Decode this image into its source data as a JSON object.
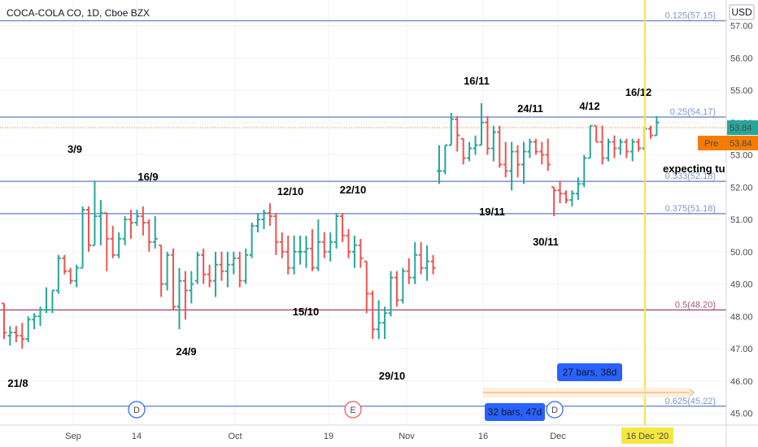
{
  "header": {
    "symbol": "COCA-COLA CO, 1D, Cboe BZX",
    "currency": "USD"
  },
  "chart_data": {
    "type": "ohlc",
    "title": "COCA-COLA CO, 1D, Cboe BZX",
    "ylabel": "USD",
    "ylim": [
      44.8,
      57.6
    ],
    "grid": true,
    "y_ticks": [
      "57.00",
      "56.00",
      "55.00",
      "54.00",
      "53.00",
      "52.00",
      "51.00",
      "50.00",
      "49.00",
      "48.00",
      "47.00",
      "46.00",
      "45.00"
    ],
    "x_ticks": [
      "Sep",
      "14",
      "Oct",
      "19",
      "Nov",
      "16",
      "Dec"
    ],
    "ohlc": [
      [
        48.4,
        48.4,
        47.3,
        47.5
      ],
      [
        47.4,
        47.7,
        47.1,
        47.5
      ],
      [
        47.5,
        47.7,
        47.2,
        47.4
      ],
      [
        47.4,
        47.8,
        47.0,
        47.3
      ],
      [
        47.3,
        48.0,
        47.2,
        47.9
      ],
      [
        47.9,
        48.1,
        47.6,
        48.0
      ],
      [
        48.0,
        48.3,
        47.7,
        48.2
      ],
      [
        48.2,
        48.9,
        48.1,
        48.2
      ],
      [
        48.2,
        48.8,
        48.1,
        48.8
      ],
      [
        48.8,
        49.9,
        48.7,
        49.8
      ],
      [
        49.8,
        49.9,
        49.3,
        49.4
      ],
      [
        49.4,
        49.5,
        49.0,
        49.1
      ],
      [
        49.1,
        49.6,
        48.9,
        49.5
      ],
      [
        49.5,
        51.4,
        49.5,
        51.3
      ],
      [
        51.3,
        51.4,
        50.0,
        50.2
      ],
      [
        50.2,
        52.2,
        50.2,
        51.1
      ],
      [
        51.1,
        51.6,
        50.2,
        51.2
      ],
      [
        51.2,
        51.2,
        49.4,
        50.4
      ],
      [
        50.4,
        50.8,
        49.8,
        49.9
      ],
      [
        49.9,
        50.6,
        49.8,
        50.4
      ],
      [
        50.4,
        51.1,
        50.2,
        51.0
      ],
      [
        51.0,
        51.3,
        50.4,
        50.9
      ],
      [
        50.9,
        51.3,
        50.8,
        51.1
      ],
      [
        51.1,
        51.4,
        50.5,
        50.9
      ],
      [
        50.9,
        51.0,
        50.0,
        50.3
      ],
      [
        50.3,
        51.1,
        50.1,
        50.4
      ],
      [
        50.2,
        50.2,
        48.6,
        49.0
      ],
      [
        49.0,
        50.0,
        48.8,
        49.9
      ],
      [
        49.9,
        50.1,
        48.2,
        48.3
      ],
      [
        48.3,
        49.5,
        47.6,
        49.1
      ],
      [
        49.1,
        49.4,
        47.9,
        48.8
      ],
      [
        48.8,
        49.4,
        48.4,
        49.0
      ],
      [
        49.1,
        50.0,
        49.0,
        49.9
      ],
      [
        49.9,
        50.1,
        49.0,
        49.3
      ],
      [
        49.3,
        49.6,
        48.9,
        49.1
      ],
      [
        49.1,
        50.0,
        48.6,
        49.6
      ],
      [
        49.6,
        50.0,
        49.1,
        49.4
      ],
      [
        49.4,
        50.0,
        48.9,
        49.6
      ],
      [
        49.6,
        50.0,
        49.3,
        49.8
      ],
      [
        49.8,
        50.0,
        48.9,
        49.1
      ],
      [
        49.1,
        50.1,
        49.0,
        49.9
      ],
      [
        49.9,
        50.9,
        49.8,
        50.8
      ],
      [
        50.8,
        51.2,
        50.6,
        51.0
      ],
      [
        51.0,
        51.3,
        50.7,
        51.2
      ],
      [
        51.2,
        51.5,
        50.8,
        51.1
      ],
      [
        51.1,
        51.2,
        49.9,
        50.3
      ],
      [
        50.3,
        50.6,
        49.8,
        50.0
      ],
      [
        50.0,
        50.5,
        49.3,
        49.5
      ],
      [
        49.5,
        50.5,
        49.3,
        50.0
      ],
      [
        50.0,
        50.5,
        49.6,
        50.0
      ],
      [
        50.0,
        50.5,
        49.5,
        50.1
      ],
      [
        50.1,
        50.7,
        49.4,
        49.5
      ],
      [
        49.5,
        51.0,
        49.4,
        50.3
      ],
      [
        50.3,
        50.6,
        49.8,
        50.0
      ],
      [
        50.0,
        50.6,
        49.7,
        50.3
      ],
      [
        50.3,
        51.2,
        50.1,
        51.1
      ],
      [
        51.1,
        51.2,
        50.3,
        50.5
      ],
      [
        50.5,
        50.7,
        49.8,
        50.0
      ],
      [
        50.0,
        50.5,
        49.5,
        50.2
      ],
      [
        50.2,
        50.4,
        49.5,
        49.8
      ],
      [
        49.7,
        49.7,
        48.1,
        48.7
      ],
      [
        48.7,
        48.8,
        47.3,
        47.6
      ],
      [
        47.6,
        48.5,
        47.3,
        47.8
      ],
      [
        47.8,
        48.3,
        47.3,
        48.1
      ],
      [
        48.1,
        49.4,
        48.0,
        49.2
      ],
      [
        49.2,
        49.4,
        48.3,
        48.5
      ],
      [
        48.5,
        49.5,
        48.4,
        49.4
      ],
      [
        49.4,
        49.8,
        49.0,
        49.2
      ],
      [
        49.2,
        50.3,
        49.0,
        49.9
      ],
      [
        49.9,
        50.3,
        49.3,
        49.5
      ],
      [
        49.5,
        50.2,
        49.1,
        49.7
      ],
      [
        49.7,
        49.9,
        49.3,
        49.5
      ],
      [
        52.5,
        53.3,
        52.1,
        52.5
      ],
      [
        52.5,
        53.3,
        52.4,
        53.3
      ],
      [
        53.3,
        54.3,
        53.3,
        54.1
      ],
      [
        54.1,
        54.2,
        53.1,
        53.6
      ],
      [
        53.5,
        53.5,
        52.7,
        52.9
      ],
      [
        52.9,
        53.4,
        52.8,
        53.2
      ],
      [
        53.2,
        53.6,
        53.0,
        53.3
      ],
      [
        53.3,
        54.6,
        53.3,
        54.0
      ],
      [
        54.0,
        54.2,
        53.0,
        53.2
      ],
      [
        53.2,
        53.9,
        52.8,
        53.7
      ],
      [
        53.7,
        53.9,
        52.6,
        52.7
      ],
      [
        52.7,
        53.4,
        52.3,
        52.5
      ],
      [
        52.5,
        53.4,
        51.9,
        53.1
      ],
      [
        53.1,
        53.3,
        52.3,
        52.7
      ],
      [
        52.7,
        53.4,
        52.1,
        53.1
      ],
      [
        53.1,
        53.5,
        52.9,
        53.4
      ],
      [
        53.4,
        53.5,
        53.0,
        53.1
      ],
      [
        53.1,
        53.4,
        52.7,
        53.0
      ],
      [
        53.0,
        53.5,
        52.5,
        52.7
      ],
      [
        52.0,
        52.0,
        51.1,
        51.9
      ],
      [
        51.9,
        52.2,
        51.5,
        51.8
      ],
      [
        51.8,
        51.9,
        51.5,
        51.6
      ],
      [
        51.6,
        51.9,
        51.4,
        51.8
      ],
      [
        51.8,
        52.3,
        51.6,
        52.1
      ],
      [
        52.1,
        53.0,
        52.0,
        52.9
      ],
      [
        52.9,
        53.9,
        52.9,
        53.9
      ],
      [
        53.9,
        53.9,
        53.4,
        53.4
      ],
      [
        53.4,
        53.9,
        52.7,
        52.9
      ],
      [
        52.9,
        53.5,
        52.8,
        53.4
      ],
      [
        53.4,
        53.6,
        52.9,
        53.2
      ],
      [
        53.2,
        53.5,
        53.0,
        53.4
      ],
      [
        53.4,
        53.5,
        52.9,
        53.1
      ],
      [
        53.1,
        53.5,
        52.8,
        53.4
      ],
      [
        53.4,
        53.5,
        53.1,
        53.2
      ],
      [
        53.2,
        53.9,
        53.1,
        53.8
      ],
      [
        53.8,
        53.9,
        53.5,
        53.6
      ],
      [
        53.6,
        54.2,
        53.6,
        54.0
      ]
    ],
    "horizontal_levels": [
      {
        "price": 57.15,
        "label": "0.125(57.15)",
        "color": "#5b7fbd"
      },
      {
        "price": 54.17,
        "label": "0.25(54.17)",
        "color": "#5b7fbd"
      },
      {
        "price": 52.18,
        "label": "0.333(52.18)",
        "color": "#5b7fbd"
      },
      {
        "price": 51.18,
        "label": "0.375(51.18)",
        "color": "#5b7fbd"
      },
      {
        "price": 48.2,
        "label": "0.5(48.20)",
        "color": "#8e2c5a"
      },
      {
        "price": 45.22,
        "label": "0.625(45.22)",
        "color": "#5b7fbd"
      }
    ],
    "annotations": [
      "21/8",
      "3/9",
      "16/9",
      "24/9",
      "12/10",
      "15/10",
      "22/10",
      "29/10",
      "16/11",
      "19/11",
      "24/11",
      "30/11",
      "4/12",
      "16/12",
      "expecting tu"
    ],
    "price_labels": {
      "last": "53.84",
      "pre_tag": "Pre",
      "pre_value": "53.84"
    },
    "time_highlight": "16 Dec '20",
    "event_markers": [
      "D",
      "E",
      "D"
    ],
    "measure_labels": [
      "27 bars, 38d",
      "32 bars, 47d"
    ]
  },
  "colors": {
    "up": "#26a69a",
    "down": "#ef5350",
    "fib": "#5b7fbd",
    "half": "#8e2c5a",
    "orange": "#f57c00",
    "vline": "#f5e642"
  }
}
